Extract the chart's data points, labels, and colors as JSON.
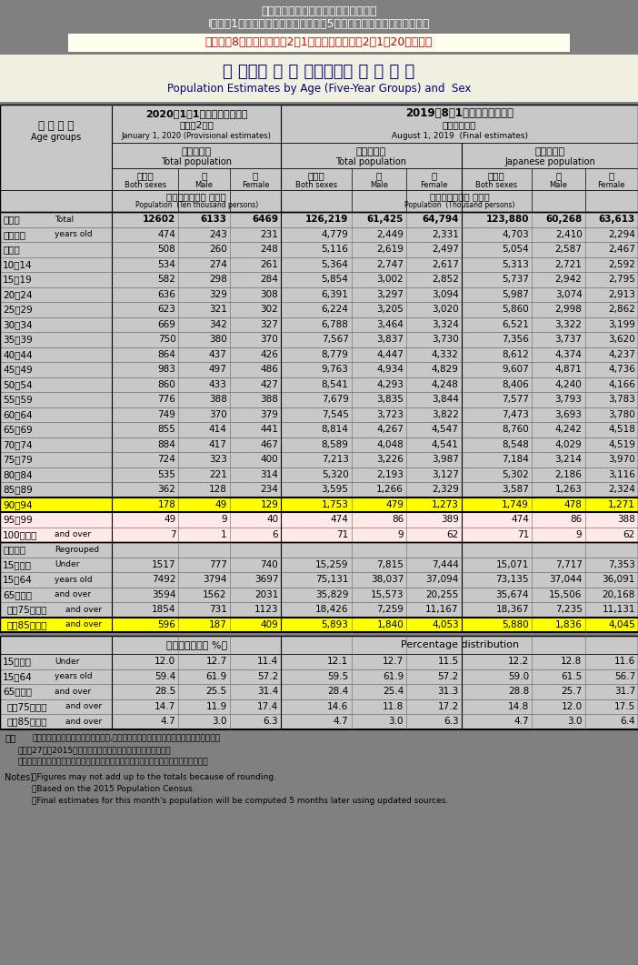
{
  "title1": "総務省統計局　人口推計の結果の概要",
  "title2": "I．各月1日現在人口　「全国：年齢（5歳階級），男女別人口」統計表",
  "title3": "令和元年8月確定値、令和2年1月概算値　（令和2年1月20日公表）",
  "main_title_jp": "年 齢（５ 歳 階 級），　男 女 別 人 口",
  "main_title_en": "Population Estimates by Age (Five-Year Groups) and  Sex",
  "hdr_date1_jp": "2020年1月1日現在（概算値）",
  "hdr_date1_sub": "（令和2年）",
  "hdr_date1_en": "January 1, 2020 (Provisional estimates)",
  "hdr_date2_jp": "2019年8月1日現在（確定値）",
  "hdr_date2_sub": "（令和元年）",
  "hdr_date2_en": "August 1, 2019  (Final estimates)",
  "grp1_jp": "総　人　口",
  "grp1_en": "Total population",
  "grp2_jp": "総　人　口",
  "grp2_en": "Total population",
  "grp3_jp": "日本人人口",
  "grp3_en": "Japanese population",
  "unit1_jp": "人　口　（単位 万人）",
  "unit1_en": "Population  (Ten thousand persons)",
  "unit2_jp": "人　口　（単位 千人）",
  "unit2_en": "Population  (Thousand persons)",
  "age_hdr_jp": "年 齢 階 級",
  "age_hdr_en": "Age groups",
  "sex_jp": [
    "男女計",
    "男",
    "女",
    "男女計",
    "男",
    "女",
    "男女計",
    "男",
    "女"
  ],
  "sex_en": [
    "Both sexes",
    "Male",
    "Female",
    "Both sexes",
    "Male",
    "Female",
    "Both sexes",
    "Male",
    "Female"
  ],
  "rows": [
    {
      "lj": "総　数",
      "le": "Total",
      "v1": "12602",
      "v2": "6133",
      "v3": "6469",
      "v4": "126,219",
      "v5": "61,425",
      "v6": "64,794",
      "v7": "123,880",
      "v8": "60,268",
      "v9": "63,613",
      "bold": true,
      "hl": false,
      "pk": false
    },
    {
      "lj": "０～４歳",
      "le": "years old",
      "v1": "474",
      "v2": "243",
      "v3": "231",
      "v4": "4,779",
      "v5": "2,449",
      "v6": "2,331",
      "v7": "4,703",
      "v8": "2,410",
      "v9": "2,294",
      "bold": false,
      "hl": false,
      "pk": false
    },
    {
      "lj": "５～９",
      "le": "",
      "v1": "508",
      "v2": "260",
      "v3": "248",
      "v4": "5,116",
      "v5": "2,619",
      "v6": "2,497",
      "v7": "5,054",
      "v8": "2,587",
      "v9": "2,467",
      "bold": false,
      "hl": false,
      "pk": false
    },
    {
      "lj": "10～14",
      "le": "",
      "v1": "534",
      "v2": "274",
      "v3": "261",
      "v4": "5,364",
      "v5": "2,747",
      "v6": "2,617",
      "v7": "5,313",
      "v8": "2,721",
      "v9": "2,592",
      "bold": false,
      "hl": false,
      "pk": false
    },
    {
      "lj": "15～19",
      "le": "",
      "v1": "582",
      "v2": "298",
      "v3": "284",
      "v4": "5,854",
      "v5": "3,002",
      "v6": "2,852",
      "v7": "5,737",
      "v8": "2,942",
      "v9": "2,795",
      "bold": false,
      "hl": false,
      "pk": false
    },
    {
      "lj": "20～24",
      "le": "",
      "v1": "636",
      "v2": "329",
      "v3": "308",
      "v4": "6,391",
      "v5": "3,297",
      "v6": "3,094",
      "v7": "5,987",
      "v8": "3,074",
      "v9": "2,913",
      "bold": false,
      "hl": false,
      "pk": false
    },
    {
      "lj": "25～29",
      "le": "",
      "v1": "623",
      "v2": "321",
      "v3": "302",
      "v4": "6,224",
      "v5": "3,205",
      "v6": "3,020",
      "v7": "5,860",
      "v8": "2,998",
      "v9": "2,862",
      "bold": false,
      "hl": false,
      "pk": false
    },
    {
      "lj": "30～34",
      "le": "",
      "v1": "669",
      "v2": "342",
      "v3": "327",
      "v4": "6,788",
      "v5": "3,464",
      "v6": "3,324",
      "v7": "6,521",
      "v8": "3,322",
      "v9": "3,199",
      "bold": false,
      "hl": false,
      "pk": false
    },
    {
      "lj": "35～39",
      "le": "",
      "v1": "750",
      "v2": "380",
      "v3": "370",
      "v4": "7,567",
      "v5": "3,837",
      "v6": "3,730",
      "v7": "7,356",
      "v8": "3,737",
      "v9": "3,620",
      "bold": false,
      "hl": false,
      "pk": false
    },
    {
      "lj": "40～44",
      "le": "",
      "v1": "864",
      "v2": "437",
      "v3": "426",
      "v4": "8,779",
      "v5": "4,447",
      "v6": "4,332",
      "v7": "8,612",
      "v8": "4,374",
      "v9": "4,237",
      "bold": false,
      "hl": false,
      "pk": false
    },
    {
      "lj": "45～49",
      "le": "",
      "v1": "983",
      "v2": "497",
      "v3": "486",
      "v4": "9,763",
      "v5": "4,934",
      "v6": "4,829",
      "v7": "9,607",
      "v8": "4,871",
      "v9": "4,736",
      "bold": false,
      "hl": false,
      "pk": false
    },
    {
      "lj": "50～54",
      "le": "",
      "v1": "860",
      "v2": "433",
      "v3": "427",
      "v4": "8,541",
      "v5": "4,293",
      "v6": "4,248",
      "v7": "8,406",
      "v8": "4,240",
      "v9": "4,166",
      "bold": false,
      "hl": false,
      "pk": false
    },
    {
      "lj": "55～59",
      "le": "",
      "v1": "776",
      "v2": "388",
      "v3": "388",
      "v4": "7,679",
      "v5": "3,835",
      "v6": "3,844",
      "v7": "7,577",
      "v8": "3,793",
      "v9": "3,783",
      "bold": false,
      "hl": false,
      "pk": false
    },
    {
      "lj": "60～64",
      "le": "",
      "v1": "749",
      "v2": "370",
      "v3": "379",
      "v4": "7,545",
      "v5": "3,723",
      "v6": "3,822",
      "v7": "7,473",
      "v8": "3,693",
      "v9": "3,780",
      "bold": false,
      "hl": false,
      "pk": false
    },
    {
      "lj": "65～69",
      "le": "",
      "v1": "855",
      "v2": "414",
      "v3": "441",
      "v4": "8,814",
      "v5": "4,267",
      "v6": "4,547",
      "v7": "8,760",
      "v8": "4,242",
      "v9": "4,518",
      "bold": false,
      "hl": false,
      "pk": false
    },
    {
      "lj": "70～74",
      "le": "",
      "v1": "884",
      "v2": "417",
      "v3": "467",
      "v4": "8,589",
      "v5": "4,048",
      "v6": "4,541",
      "v7": "8,548",
      "v8": "4,029",
      "v9": "4,519",
      "bold": false,
      "hl": false,
      "pk": false
    },
    {
      "lj": "75～79",
      "le": "",
      "v1": "724",
      "v2": "323",
      "v3": "400",
      "v4": "7,213",
      "v5": "3,226",
      "v6": "3,987",
      "v7": "7,184",
      "v8": "3,214",
      "v9": "3,970",
      "bold": false,
      "hl": false,
      "pk": false
    },
    {
      "lj": "80～84",
      "le": "",
      "v1": "535",
      "v2": "221",
      "v3": "314",
      "v4": "5,320",
      "v5": "2,193",
      "v6": "3,127",
      "v7": "5,302",
      "v8": "2,186",
      "v9": "3,116",
      "bold": false,
      "hl": false,
      "pk": false
    },
    {
      "lj": "85～89",
      "le": "",
      "v1": "362",
      "v2": "128",
      "v3": "234",
      "v4": "3,595",
      "v5": "1,266",
      "v6": "2,329",
      "v7": "3,587",
      "v8": "1,263",
      "v9": "2,324",
      "bold": false,
      "hl": false,
      "pk": false
    },
    {
      "lj": "90～94",
      "le": "",
      "v1": "178",
      "v2": "49",
      "v3": "129",
      "v4": "1,753",
      "v5": "479",
      "v6": "1,273",
      "v7": "1,749",
      "v8": "478",
      "v9": "1,271",
      "bold": false,
      "hl": true,
      "pk": false
    },
    {
      "lj": "95～99",
      "le": "",
      "v1": "49",
      "v2": "9",
      "v3": "40",
      "v4": "474",
      "v5": "86",
      "v6": "389",
      "v7": "474",
      "v8": "86",
      "v9": "388",
      "bold": false,
      "hl": false,
      "pk": true
    },
    {
      "lj": "100歳以上",
      "le": "and over",
      "v1": "7",
      "v2": "1",
      "v3": "6",
      "v4": "71",
      "v5": "9",
      "v6": "62",
      "v7": "71",
      "v8": "9",
      "v9": "62",
      "bold": false,
      "hl": false,
      "pk": true
    }
  ],
  "rg_rows": [
    {
      "lj": "（再掲）",
      "le": "Regrouped",
      "v1": "",
      "v2": "",
      "v3": "",
      "v4": "",
      "v5": "",
      "v6": "",
      "v7": "",
      "v8": "",
      "v9": "",
      "hl": false
    },
    {
      "lj": "15歳未満",
      "le": "Under",
      "v1": "1517",
      "v2": "777",
      "v3": "740",
      "v4": "15,259",
      "v5": "7,815",
      "v6": "7,444",
      "v7": "15,071",
      "v8": "7,717",
      "v9": "7,353",
      "hl": false
    },
    {
      "lj": "15～64",
      "le": "years old",
      "v1": "7492",
      "v2": "3794",
      "v3": "3697",
      "v4": "75,131",
      "v5": "38,037",
      "v6": "37,094",
      "v7": "73,135",
      "v8": "37,044",
      "v9": "36,091",
      "hl": false
    },
    {
      "lj": "65歳以上",
      "le": "and over",
      "v1": "3594",
      "v2": "1562",
      "v3": "2031",
      "v4": "35,829",
      "v5": "15,573",
      "v6": "20,255",
      "v7": "35,674",
      "v8": "15,506",
      "v9": "20,168",
      "hl": false
    },
    {
      "lj": "うち75歳以上",
      "le": "and over",
      "v1": "1854",
      "v2": "731",
      "v3": "1123",
      "v4": "18,426",
      "v5": "7,259",
      "v6": "11,167",
      "v7": "18,367",
      "v8": "7,235",
      "v9": "11,131",
      "hl": false
    },
    {
      "lj": "うち85歳以上",
      "le": "and over",
      "v1": "596",
      "v2": "187",
      "v3": "409",
      "v4": "5,893",
      "v5": "1,840",
      "v6": "4,053",
      "v7": "5,880",
      "v8": "1,836",
      "v9": "4,045",
      "hl": true
    }
  ],
  "pct_rows": [
    {
      "lj": "15歳未満",
      "le": "Under",
      "v1": "12.0",
      "v2": "12.7",
      "v3": "11.4",
      "v4": "12.1",
      "v5": "12.7",
      "v6": "11.5",
      "v7": "12.2",
      "v8": "12.8",
      "v9": "11.6"
    },
    {
      "lj": "15～64",
      "le": "years old",
      "v1": "59.4",
      "v2": "61.9",
      "v3": "57.2",
      "v4": "59.5",
      "v5": "61.9",
      "v6": "57.2",
      "v7": "59.0",
      "v8": "61.5",
      "v9": "56.7"
    },
    {
      "lj": "65歳以上",
      "le": "and over",
      "v1": "28.5",
      "v2": "25.5",
      "v3": "31.4",
      "v4": "28.4",
      "v5": "25.4",
      "v6": "31.3",
      "v7": "28.8",
      "v8": "25.7",
      "v9": "31.7"
    },
    {
      "lj": "うち75歳以上",
      "le": "and over",
      "v1": "14.7",
      "v2": "11.9",
      "v3": "17.4",
      "v4": "14.6",
      "v5": "11.8",
      "v6": "17.2",
      "v7": "14.8",
      "v8": "12.0",
      "v9": "17.5"
    },
    {
      "lj": "うち85歳以上",
      "le": "and over",
      "v1": "4.7",
      "v2": "3.0",
      "v3": "6.3",
      "v4": "4.7",
      "v5": "3.0",
      "v6": "6.3",
      "v7": "4.7",
      "v8": "3.0",
      "v9": "6.4"
    }
  ],
  "notes_jp": [
    "・単位未満は四捨五入してあるため,合計の数字と内訳の計が一致しない場合がある。",
    "・平成27年（2015年）国勢調査による人口を基準としている。",
    "・当月分の人口（概算値）は，算出用データの更新に伴い，５か月後に確定値となる。"
  ],
  "notes_en": [
    "・Figures may not add up to the totals because of rounding.",
    "・Based on the 2015 Population Census.",
    "・Final estimates for this month's population will be computed 5 months later using updated sources."
  ],
  "bg_gray": "#808080",
  "bg_cell": "#c8c8c8",
  "bg_yellow": "#ffff00",
  "bg_pink": "#ffe8e8",
  "bg_title3": "#fffff0",
  "bg_maintitle": "#f0efe0",
  "text_white": "#ffffff",
  "text_red": "#cc0000",
  "text_navy": "#000080"
}
